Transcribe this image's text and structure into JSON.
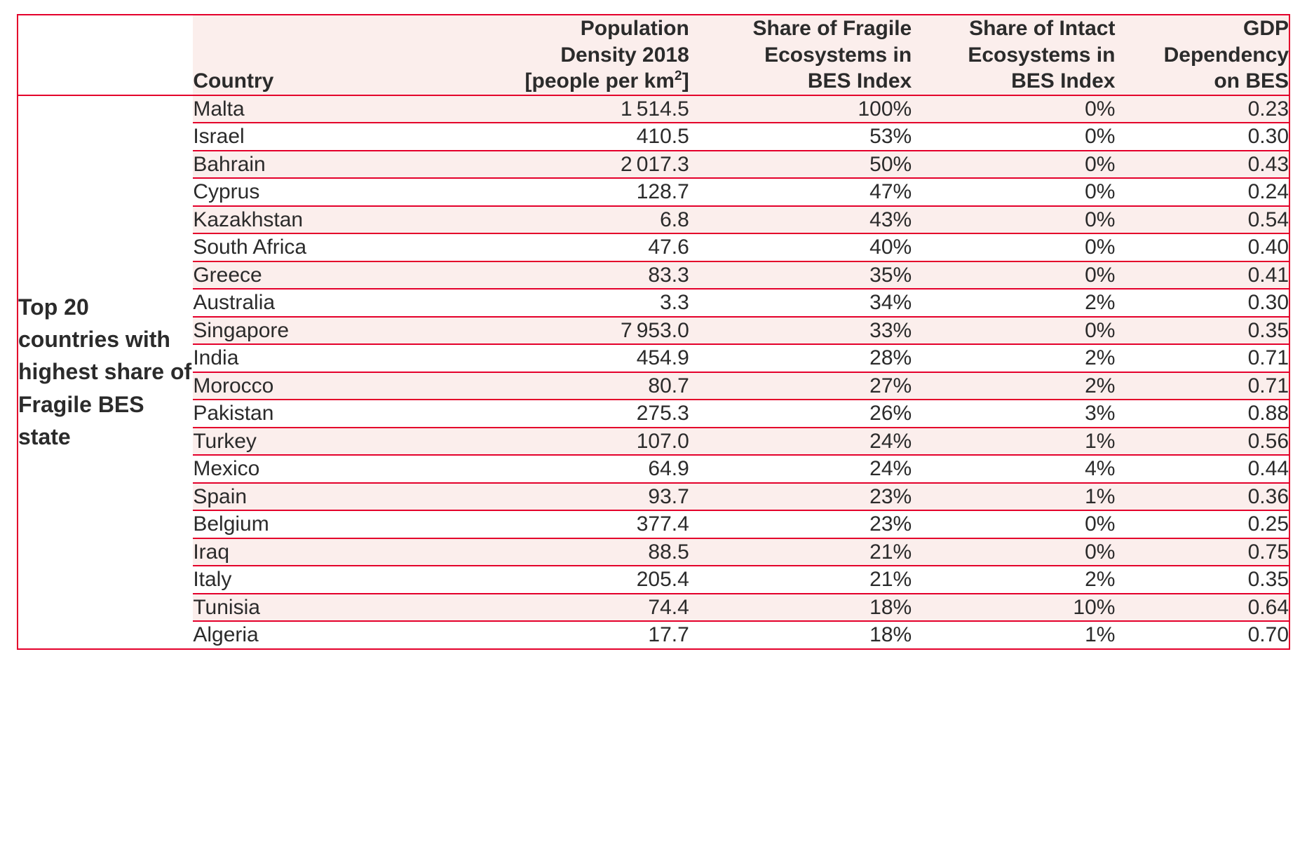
{
  "colors": {
    "red": "#e4002b",
    "pink": "#fbeeec",
    "text": "#2b2b2b"
  },
  "table": {
    "type": "table",
    "col_widths_pct": [
      13.8,
      19.0,
      20.0,
      17.5,
      16.0,
      13.7
    ],
    "header": {
      "group": "",
      "country": "Country",
      "density_l1": "Population",
      "density_l2": "Density 2018",
      "density_l3_prefix": "[people per km",
      "density_l3_suffix": "]",
      "fragile_l1": "Share of Fragile",
      "fragile_l2": "Ecosystems in",
      "fragile_l3": "BES Index",
      "intact_l1": "Share of Intact",
      "intact_l2": "Ecosystems in",
      "intact_l3": "BES Index",
      "gdp_l1": "GDP",
      "gdp_l2": "Dependency",
      "gdp_l3": "on BES"
    },
    "group_label": "Top 20 countries with highest share of Fragile BES state",
    "rows": [
      {
        "country": "Malta",
        "density": "1 514.5",
        "fragile": "100%",
        "intact": "0%",
        "gdp": "0.23"
      },
      {
        "country": "Israel",
        "density": "410.5",
        "fragile": "53%",
        "intact": "0%",
        "gdp": "0.30"
      },
      {
        "country": "Bahrain",
        "density": "2 017.3",
        "fragile": "50%",
        "intact": "0%",
        "gdp": "0.43"
      },
      {
        "country": "Cyprus",
        "density": "128.7",
        "fragile": "47%",
        "intact": "0%",
        "gdp": "0.24"
      },
      {
        "country": "Kazakhstan",
        "density": "6.8",
        "fragile": "43%",
        "intact": "0%",
        "gdp": "0.54"
      },
      {
        "country": "South Africa",
        "density": "47.6",
        "fragile": "40%",
        "intact": "0%",
        "gdp": "0.40"
      },
      {
        "country": "Greece",
        "density": "83.3",
        "fragile": "35%",
        "intact": "0%",
        "gdp": "0.41"
      },
      {
        "country": "Australia",
        "density": "3.3",
        "fragile": "34%",
        "intact": "2%",
        "gdp": "0.30"
      },
      {
        "country": "Singapore",
        "density": "7 953.0",
        "fragile": "33%",
        "intact": "0%",
        "gdp": "0.35"
      },
      {
        "country": "India",
        "density": "454.9",
        "fragile": "28%",
        "intact": "2%",
        "gdp": "0.71"
      },
      {
        "country": "Morocco",
        "density": "80.7",
        "fragile": "27%",
        "intact": "2%",
        "gdp": "0.71"
      },
      {
        "country": "Pakistan",
        "density": "275.3",
        "fragile": "26%",
        "intact": "3%",
        "gdp": "0.88"
      },
      {
        "country": "Turkey",
        "density": "107.0",
        "fragile": "24%",
        "intact": "1%",
        "gdp": "0.56"
      },
      {
        "country": "Mexico",
        "density": "64.9",
        "fragile": "24%",
        "intact": "4%",
        "gdp": "0.44"
      },
      {
        "country": "Spain",
        "density": "93.7",
        "fragile": "23%",
        "intact": "1%",
        "gdp": "0.36"
      },
      {
        "country": "Belgium",
        "density": "377.4",
        "fragile": "23%",
        "intact": "0%",
        "gdp": "0.25"
      },
      {
        "country": "Iraq",
        "density": "88.5",
        "fragile": "21%",
        "intact": "0%",
        "gdp": "0.75"
      },
      {
        "country": "Italy",
        "density": "205.4",
        "fragile": "21%",
        "intact": "2%",
        "gdp": "0.35"
      },
      {
        "country": "Tunisia",
        "density": "74.4",
        "fragile": "18%",
        "intact": "10%",
        "gdp": "0.64"
      },
      {
        "country": "Algeria",
        "density": "17.7",
        "fragile": "18%",
        "intact": "1%",
        "gdp": "0.70"
      }
    ]
  }
}
